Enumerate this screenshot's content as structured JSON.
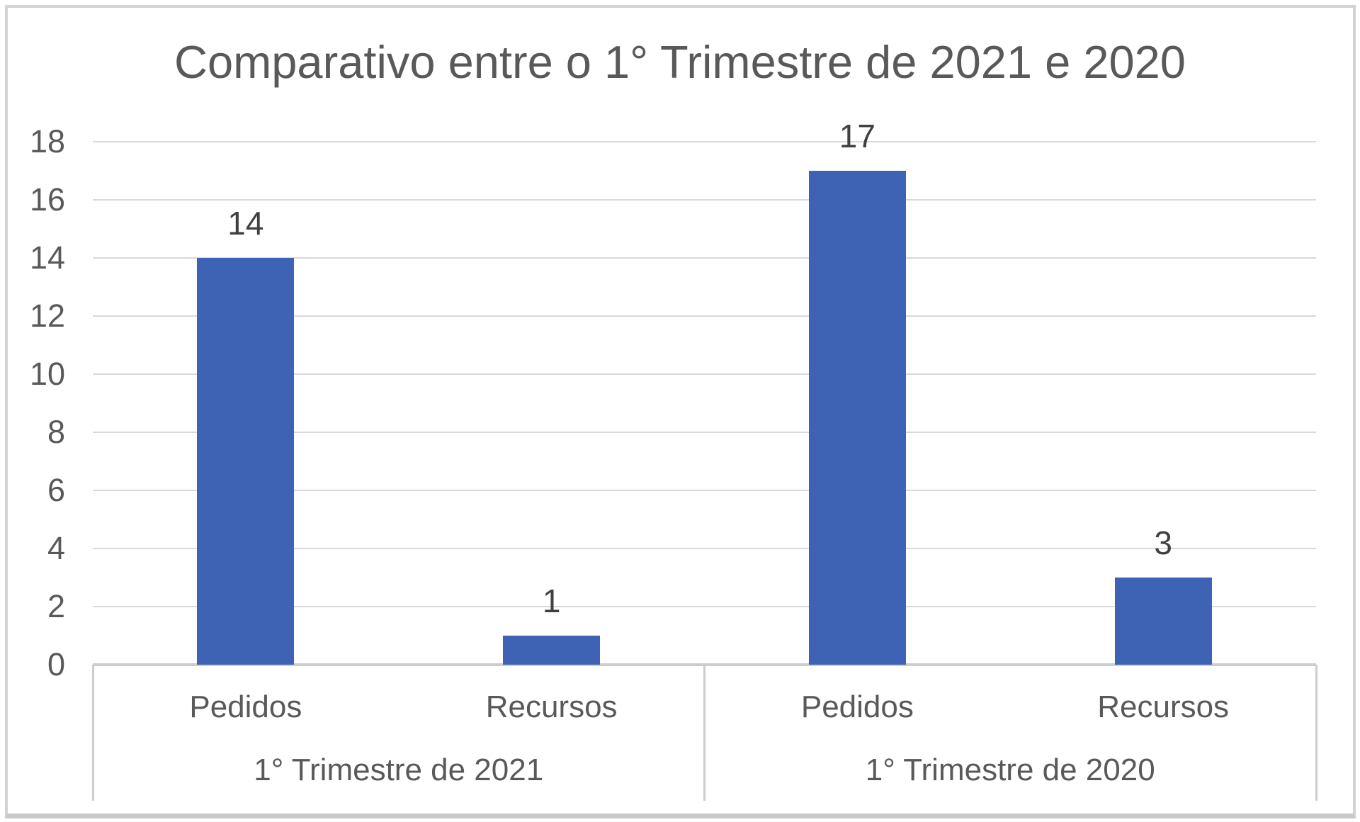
{
  "chart_data": {
    "type": "bar",
    "title": "Comparativo entre o 1° Trimestre de 2021 e 2020",
    "ylim": [
      0,
      18
    ],
    "y_tick_step": 2,
    "y_ticks": [
      0,
      2,
      4,
      6,
      8,
      10,
      12,
      14,
      16,
      18
    ],
    "grid": true,
    "legend": "none",
    "data_labels_shown": true,
    "groups": [
      {
        "label": "1° Trimestre de 2021",
        "categories": [
          "Pedidos",
          "Recursos"
        ],
        "values": [
          14,
          1
        ]
      },
      {
        "label": "1° Trimestre de 2020",
        "categories": [
          "Pedidos",
          "Recursos"
        ],
        "values": [
          17,
          3
        ]
      }
    ],
    "colors": {
      "bar": "#3f63b4",
      "title_text": "#595959",
      "axis_text": "#595959",
      "data_label_text": "#404040",
      "gridline": "#d9d9d9",
      "axis_line": "#cdcdcd",
      "chart_border": "#d3d3d3",
      "background": "#ffffff"
    }
  }
}
